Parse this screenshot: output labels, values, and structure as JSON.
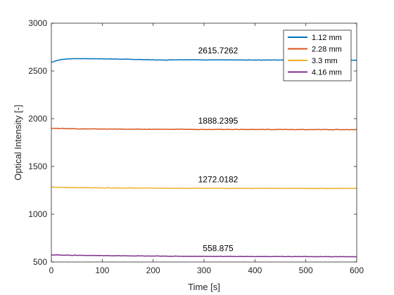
{
  "chart_data": {
    "type": "line",
    "title": "",
    "xlabel": "Time [s]",
    "ylabel": "Optical Intensity [-]",
    "xlim": [
      0,
      600
    ],
    "ylim": [
      500,
      3000
    ],
    "xticks": [
      0,
      100,
      200,
      300,
      400,
      500,
      600
    ],
    "yticks": [
      500,
      1000,
      1500,
      2000,
      2500,
      3000
    ],
    "grid": false,
    "legend_position": "top-right",
    "series": [
      {
        "name": "1.12 mm",
        "color": "#0072BD",
        "x": [
          0,
          5,
          10,
          20,
          30,
          40,
          60,
          80,
          100,
          120,
          140,
          160,
          180,
          200,
          220,
          240,
          260,
          280,
          300,
          320,
          340,
          360,
          380,
          400,
          420,
          440,
          460,
          480,
          500,
          520,
          540,
          560,
          580,
          600
        ],
        "y": [
          2590,
          2600,
          2608,
          2620,
          2625,
          2628,
          2629,
          2628,
          2627,
          2625,
          2623,
          2621,
          2619,
          2616,
          2614,
          2617,
          2618,
          2617,
          2616,
          2616,
          2615,
          2615,
          2614,
          2615,
          2614,
          2615,
          2615,
          2614,
          2614,
          2613,
          2613,
          2612,
          2612,
          2612
        ]
      },
      {
        "name": "2.28 mm",
        "color": "#D95319",
        "x": [
          0,
          20,
          50,
          100,
          150,
          200,
          250,
          300,
          350,
          400,
          450,
          500,
          550,
          600
        ],
        "y": [
          1900,
          1898,
          1894,
          1892,
          1890,
          1889,
          1889,
          1888,
          1888,
          1887,
          1887,
          1886,
          1886,
          1886
        ]
      },
      {
        "name": "3.3 mm",
        "color": "#EDB120",
        "x": [
          0,
          20,
          50,
          100,
          150,
          200,
          250,
          300,
          350,
          400,
          450,
          500,
          550,
          600
        ],
        "y": [
          1284,
          1281,
          1278,
          1276,
          1274,
          1273,
          1272,
          1272,
          1271,
          1271,
          1271,
          1270,
          1270,
          1270
        ]
      },
      {
        "name": "4.16 mm",
        "color": "#7E2F8E",
        "x": [
          0,
          20,
          50,
          100,
          150,
          200,
          250,
          300,
          350,
          400,
          450,
          500,
          550,
          600
        ],
        "y": [
          575,
          572,
          570,
          567,
          564,
          562,
          560,
          559,
          558,
          557,
          557,
          556,
          556,
          555
        ]
      }
    ],
    "annotations": [
      {
        "text": "2615.7262",
        "x": 300,
        "y": 2685
      },
      {
        "text": "1888.2395",
        "x": 300,
        "y": 1950
      },
      {
        "text": "1272.0182",
        "x": 300,
        "y": 1335
      },
      {
        "text": "558.875",
        "x": 300,
        "y": 615
      }
    ]
  }
}
